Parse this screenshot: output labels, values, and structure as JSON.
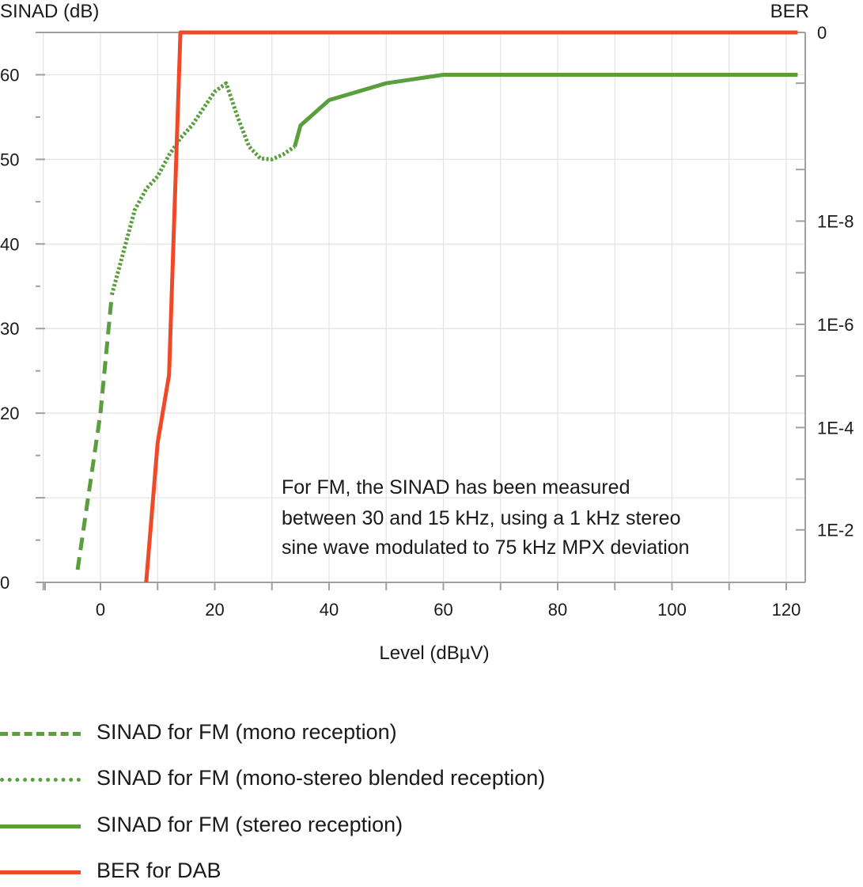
{
  "colors": {
    "green": "#5a9e3e",
    "red": "#ee4a2a",
    "grid": "#e3e3e3",
    "axis": "#a0a0a0"
  },
  "chart_data": {
    "type": "line",
    "xlabel": "Level (dBµV)",
    "ylabel": "SINAD (dB)",
    "y2label": "BER",
    "xlim": [
      -10,
      122
    ],
    "ylim": [
      0,
      65
    ],
    "x_ticks": [
      0,
      20,
      40,
      60,
      80,
      100,
      120
    ],
    "y_ticks": [
      0,
      10,
      20,
      30,
      40,
      50,
      60
    ],
    "y_tick_labels": [
      "0",
      "",
      "20",
      "30",
      "40",
      "50",
      "60"
    ],
    "y2_ticks": [
      {
        "label": "0",
        "sinad_equiv": 65
      },
      {
        "label": "1E-8",
        "sinad_equiv": 42.7
      },
      {
        "label": "1E-6",
        "sinad_equiv": 30.5
      },
      {
        "label": "1E-4",
        "sinad_equiv": 18.3
      },
      {
        "label": "1E-2",
        "sinad_equiv": 6.2
      }
    ],
    "y2_minor_ticks_sinad_equiv": [
      59,
      48.8,
      36.6,
      24.4,
      12.2
    ],
    "grid": true,
    "legend_position": "bottom",
    "annotation": [
      "For FM, the SINAD has been measured",
      "between 30 and 15 kHz, using a 1 kHz stereo",
      "sine wave modulated to 75 kHz MPX deviation"
    ],
    "series": [
      {
        "name": "SINAD for FM (mono reception)",
        "style": "dashed",
        "color": "#5a9e3e",
        "x": [
          -4,
          0,
          2
        ],
        "y": [
          1.5,
          20,
          34
        ]
      },
      {
        "name": "SINAD for FM (mono-stereo blended reception)",
        "style": "dotted",
        "color": "#5a9e3e",
        "x": [
          2,
          4,
          6,
          8,
          10,
          12,
          14,
          16,
          18,
          20,
          22,
          24,
          26,
          28,
          30,
          32,
          34
        ],
        "y": [
          34,
          39,
          44,
          46.5,
          48,
          50.5,
          52.5,
          54,
          56,
          58,
          59,
          55,
          51.5,
          50.1,
          50,
          50.6,
          51.5
        ]
      },
      {
        "name": "SINAD for FM (stereo reception)",
        "style": "solid",
        "color": "#5a9e3e",
        "x": [
          34,
          35,
          40,
          50,
          60,
          122
        ],
        "y": [
          51.5,
          54,
          57,
          59,
          60,
          60
        ]
      },
      {
        "name": "BER for DAB",
        "style": "solid",
        "color": "#ee4a2a",
        "x": [
          8,
          10,
          12,
          14,
          122
        ],
        "y": [
          0,
          16.5,
          24.5,
          65,
          65
        ]
      }
    ]
  }
}
